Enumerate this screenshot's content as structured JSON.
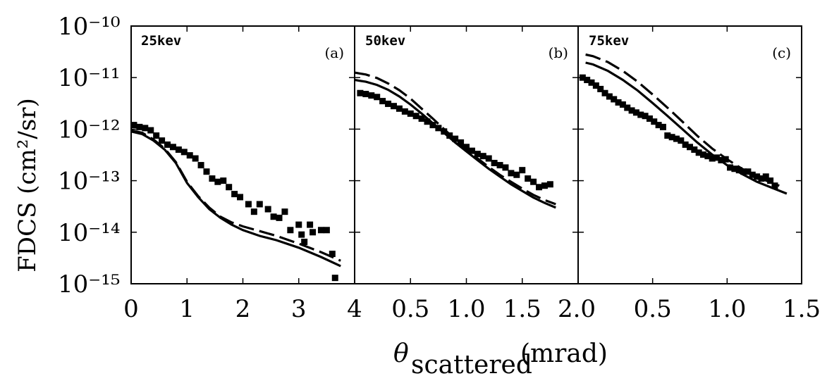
{
  "figure": {
    "ylabel": "FDCS (cm²/sr)",
    "xlabel_symbol": "θ",
    "xlabel_subscript": "scattered",
    "xlabel_unit": "(mrad)"
  },
  "chart_data": [
    {
      "type": "scatter",
      "title": "25kev",
      "panel_tag": "(a)",
      "xlim": [
        0,
        4
      ],
      "ylim_log10": [
        -15,
        -10
      ],
      "yscale": "log",
      "x_tick_labels": [
        "0",
        "1",
        "2",
        "3",
        "4"
      ],
      "y_tick_labels": [
        "10⁻¹⁰",
        "10⁻¹¹",
        "10⁻¹²",
        "10⁻¹³",
        "10⁻¹⁴",
        "10⁻¹⁵"
      ],
      "series": [
        {
          "style": "markers",
          "points": [
            [
              0.05,
              1.2e-12
            ],
            [
              0.15,
              1.1e-12
            ],
            [
              0.25,
              1.05e-12
            ],
            [
              0.35,
              9.5e-13
            ],
            [
              0.45,
              7.5e-13
            ],
            [
              0.55,
              6e-13
            ],
            [
              0.65,
              5e-13
            ],
            [
              0.75,
              4.5e-13
            ],
            [
              0.85,
              4e-13
            ],
            [
              0.95,
              3.6e-13
            ],
            [
              1.05,
              3.1e-13
            ],
            [
              1.15,
              2.7e-13
            ],
            [
              1.25,
              2e-13
            ],
            [
              1.35,
              1.5e-13
            ],
            [
              1.45,
              1.1e-13
            ],
            [
              1.55,
              9.5e-14
            ],
            [
              1.65,
              1e-13
            ],
            [
              1.75,
              7.5e-14
            ],
            [
              1.85,
              5.5e-14
            ],
            [
              1.95,
              4.8e-14
            ],
            [
              2.1,
              3.5e-14
            ],
            [
              2.2,
              2.5e-14
            ],
            [
              2.3,
              3.5e-14
            ],
            [
              2.45,
              2.8e-14
            ],
            [
              2.55,
              2e-14
            ],
            [
              2.65,
              1.9e-14
            ],
            [
              2.75,
              2.5e-14
            ],
            [
              2.85,
              1.1e-14
            ],
            [
              3.0,
              1.4e-14
            ],
            [
              3.05,
              9e-15
            ],
            [
              3.1,
              6.5e-15
            ],
            [
              3.2,
              1.4e-14
            ],
            [
              3.25,
              1e-14
            ],
            [
              3.4,
              1.1e-14
            ],
            [
              3.5,
              1.1e-14
            ],
            [
              3.6,
              3.8e-15
            ],
            [
              3.65,
              1.3e-15
            ]
          ]
        },
        {
          "style": "solid-line",
          "points": [
            [
              0,
              9e-13
            ],
            [
              0.2,
              8e-13
            ],
            [
              0.4,
              6e-13
            ],
            [
              0.6,
              4e-13
            ],
            [
              0.8,
              2.2e-13
            ],
            [
              1.0,
              9e-14
            ],
            [
              1.2,
              4.8e-14
            ],
            [
              1.4,
              2.8e-14
            ],
            [
              1.6,
              1.9e-14
            ],
            [
              1.8,
              1.4e-14
            ],
            [
              2.0,
              1.1e-14
            ],
            [
              2.3,
              8.5e-15
            ],
            [
              2.6,
              7e-15
            ],
            [
              3.0,
              5e-15
            ],
            [
              3.4,
              3.3e-15
            ],
            [
              3.75,
              2.2e-15
            ]
          ]
        },
        {
          "style": "dashed-line",
          "points": [
            [
              0,
              9.5e-13
            ],
            [
              0.2,
              8.5e-13
            ],
            [
              0.4,
              6.3e-13
            ],
            [
              0.6,
              4.2e-13
            ],
            [
              0.8,
              2.3e-13
            ],
            [
              1.0,
              9.5e-14
            ],
            [
              1.2,
              5e-14
            ],
            [
              1.4,
              3e-14
            ],
            [
              1.6,
              2e-14
            ],
            [
              1.8,
              1.55e-14
            ],
            [
              2.0,
              1.3e-14
            ],
            [
              2.3,
              1.05e-14
            ],
            [
              2.6,
              8.5e-15
            ],
            [
              3.0,
              6e-15
            ],
            [
              3.4,
              4.1e-15
            ],
            [
              3.75,
              2.8e-15
            ]
          ]
        }
      ]
    },
    {
      "type": "scatter",
      "title": "50kev",
      "panel_tag": "(b)",
      "xlim": [
        0,
        2
      ],
      "ylim_log10": [
        -15,
        -10
      ],
      "yscale": "log",
      "x_tick_labels": [
        "0.5",
        "1.0",
        "1.5",
        "2.0"
      ],
      "series": [
        {
          "style": "markers",
          "points": [
            [
              0.05,
              5e-12
            ],
            [
              0.1,
              4.8e-12
            ],
            [
              0.15,
              4.5e-12
            ],
            [
              0.2,
              4.2e-12
            ],
            [
              0.25,
              3.5e-12
            ],
            [
              0.3,
              3.1e-12
            ],
            [
              0.35,
              2.8e-12
            ],
            [
              0.4,
              2.5e-12
            ],
            [
              0.45,
              2.2e-12
            ],
            [
              0.5,
              2e-12
            ],
            [
              0.55,
              1.8e-12
            ],
            [
              0.6,
              1.6e-12
            ],
            [
              0.65,
              1.4e-12
            ],
            [
              0.7,
              1.2e-12
            ],
            [
              0.75,
              1.05e-12
            ],
            [
              0.8,
              9e-13
            ],
            [
              0.85,
              7.5e-13
            ],
            [
              0.9,
              6.5e-13
            ],
            [
              0.95,
              5.5e-13
            ],
            [
              1.0,
              4.5e-13
            ],
            [
              1.05,
              3.8e-13
            ],
            [
              1.1,
              3.3e-13
            ],
            [
              1.15,
              3e-13
            ],
            [
              1.2,
              2.7e-13
            ],
            [
              1.25,
              2.2e-13
            ],
            [
              1.3,
              2e-13
            ],
            [
              1.35,
              1.8e-13
            ],
            [
              1.4,
              1.4e-13
            ],
            [
              1.45,
              1.3e-13
            ],
            [
              1.5,
              1.6e-13
            ],
            [
              1.55,
              1.1e-13
            ],
            [
              1.6,
              9.5e-14
            ],
            [
              1.65,
              7.5e-14
            ],
            [
              1.7,
              8e-14
            ],
            [
              1.75,
              8.5e-14
            ]
          ]
        },
        {
          "style": "solid-line",
          "points": [
            [
              0,
              9e-12
            ],
            [
              0.1,
              8.3e-12
            ],
            [
              0.2,
              7.2e-12
            ],
            [
              0.3,
              5.8e-12
            ],
            [
              0.4,
              4.3e-12
            ],
            [
              0.5,
              3e-12
            ],
            [
              0.6,
              2e-12
            ],
            [
              0.7,
              1.3e-12
            ],
            [
              0.8,
              8.5e-13
            ],
            [
              0.9,
              5.5e-13
            ],
            [
              1.0,
              3.7e-13
            ],
            [
              1.1,
              2.5e-13
            ],
            [
              1.2,
              1.7e-13
            ],
            [
              1.3,
              1.2e-13
            ],
            [
              1.4,
              8.5e-14
            ],
            [
              1.5,
              6.3e-14
            ],
            [
              1.6,
              4.7e-14
            ],
            [
              1.7,
              3.7e-14
            ],
            [
              1.8,
              3e-14
            ]
          ]
        },
        {
          "style": "dashed-line",
          "points": [
            [
              0,
              1.25e-11
            ],
            [
              0.1,
              1.15e-11
            ],
            [
              0.2,
              9.8e-12
            ],
            [
              0.3,
              7.7e-12
            ],
            [
              0.4,
              5.7e-12
            ],
            [
              0.5,
              3.9e-12
            ],
            [
              0.6,
              2.5e-12
            ],
            [
              0.7,
              1.6e-12
            ],
            [
              0.8,
              1e-12
            ],
            [
              0.9,
              6.3e-13
            ],
            [
              1.0,
              4e-13
            ],
            [
              1.1,
              2.7e-13
            ],
            [
              1.2,
              1.85e-13
            ],
            [
              1.3,
              1.3e-13
            ],
            [
              1.4,
              9.5e-14
            ],
            [
              1.5,
              7e-14
            ],
            [
              1.6,
              5.3e-14
            ],
            [
              1.7,
              4.2e-14
            ],
            [
              1.8,
              3.5e-14
            ]
          ]
        }
      ]
    },
    {
      "type": "scatter",
      "title": "75kev",
      "panel_tag": "(c)",
      "xlim": [
        0,
        1.5
      ],
      "ylim_log10": [
        -15,
        -10
      ],
      "yscale": "log",
      "x_tick_labels": [
        "0.5",
        "1.0",
        "1.5"
      ],
      "series": [
        {
          "style": "markers",
          "points": [
            [
              0.03,
              1e-11
            ],
            [
              0.06,
              9e-12
            ],
            [
              0.09,
              8e-12
            ],
            [
              0.12,
              7e-12
            ],
            [
              0.15,
              6e-12
            ],
            [
              0.18,
              5e-12
            ],
            [
              0.21,
              4.3e-12
            ],
            [
              0.24,
              3.8e-12
            ],
            [
              0.27,
              3.3e-12
            ],
            [
              0.3,
              3e-12
            ],
            [
              0.33,
              2.6e-12
            ],
            [
              0.36,
              2.3e-12
            ],
            [
              0.39,
              2.1e-12
            ],
            [
              0.42,
              1.9e-12
            ],
            [
              0.45,
              1.8e-12
            ],
            [
              0.48,
              1.6e-12
            ],
            [
              0.51,
              1.4e-12
            ],
            [
              0.54,
              1.2e-12
            ],
            [
              0.57,
              1.1e-12
            ],
            [
              0.6,
              7.5e-13
            ],
            [
              0.63,
              7e-13
            ],
            [
              0.66,
              6.5e-13
            ],
            [
              0.69,
              6e-13
            ],
            [
              0.72,
              5e-13
            ],
            [
              0.75,
              4.5e-13
            ],
            [
              0.78,
              4e-13
            ],
            [
              0.81,
              3.5e-13
            ],
            [
              0.84,
              3.2e-13
            ],
            [
              0.87,
              3e-13
            ],
            [
              0.9,
              2.7e-13
            ],
            [
              0.93,
              2.8e-13
            ],
            [
              0.96,
              2.5e-13
            ],
            [
              0.99,
              2.6e-13
            ],
            [
              1.02,
              1.8e-13
            ],
            [
              1.05,
              1.7e-13
            ],
            [
              1.08,
              1.6e-13
            ],
            [
              1.11,
              1.5e-13
            ],
            [
              1.14,
              1.5e-13
            ],
            [
              1.17,
              1.3e-13
            ],
            [
              1.2,
              1.2e-13
            ],
            [
              1.23,
              1.1e-13
            ],
            [
              1.26,
              1.2e-13
            ],
            [
              1.29,
              1e-13
            ],
            [
              1.32,
              8e-14
            ]
          ]
        },
        {
          "style": "solid-line",
          "points": [
            [
              0.05,
              1.95e-11
            ],
            [
              0.1,
              1.8e-11
            ],
            [
              0.2,
              1.35e-11
            ],
            [
              0.3,
              9e-12
            ],
            [
              0.4,
              5.6e-12
            ],
            [
              0.5,
              3.2e-12
            ],
            [
              0.6,
              1.8e-12
            ],
            [
              0.7,
              1e-12
            ],
            [
              0.8,
              5.5e-13
            ],
            [
              0.9,
              3.2e-13
            ],
            [
              1.0,
              2e-13
            ],
            [
              1.1,
              1.35e-13
            ],
            [
              1.2,
              9.5e-14
            ],
            [
              1.3,
              7.3e-14
            ],
            [
              1.4,
              5.6e-14
            ]
          ]
        },
        {
          "style": "dashed-line",
          "points": [
            [
              0.05,
              2.8e-11
            ],
            [
              0.1,
              2.6e-11
            ],
            [
              0.2,
              2e-11
            ],
            [
              0.3,
              1.35e-11
            ],
            [
              0.4,
              8.3e-12
            ],
            [
              0.5,
              4.7e-12
            ],
            [
              0.6,
              2.6e-12
            ],
            [
              0.7,
              1.4e-12
            ],
            [
              0.8,
              7.4e-13
            ],
            [
              0.9,
              4.2e-13
            ],
            [
              1.0,
              2.6e-13
            ],
            [
              1.1,
              1.7e-13
            ],
            [
              1.2,
              1.2e-13
            ],
            [
              1.3,
              9e-14
            ],
            [
              1.35,
              8e-14
            ]
          ]
        }
      ]
    }
  ]
}
